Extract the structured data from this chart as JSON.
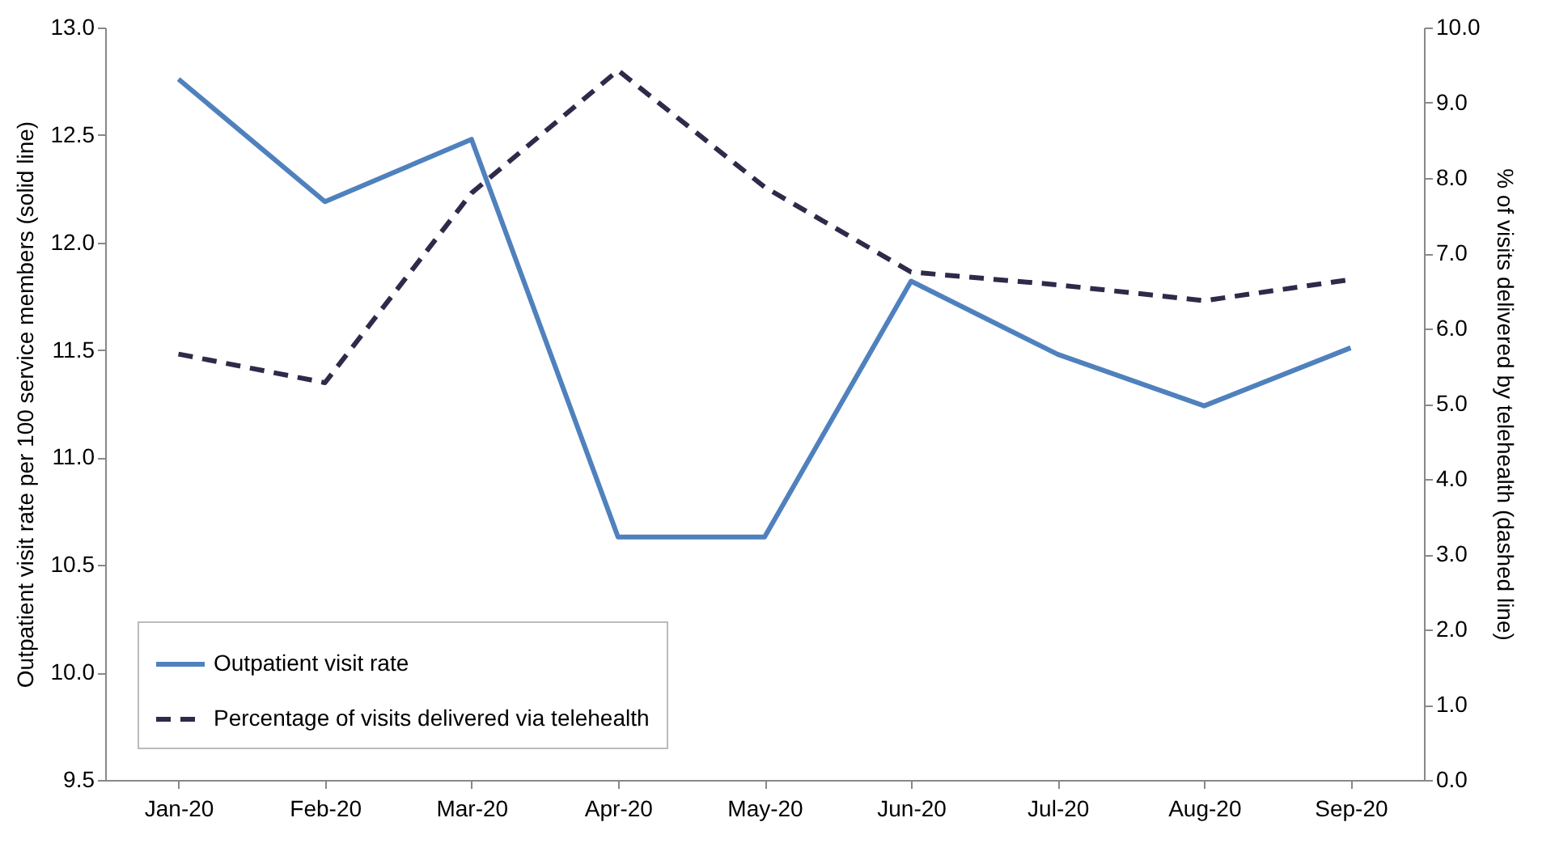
{
  "chart_data": {
    "type": "line",
    "categories": [
      "Jan-20",
      "Feb-20",
      "Mar-20",
      "Apr-20",
      "May-20",
      "Jun-20",
      "Jul-20",
      "Aug-20",
      "Sep-20"
    ],
    "ylabel": "Outpatient visit rate per 100 service members (solid line)",
    "y2label": "% of visits delivered by telehealth (dashed line)",
    "series": [
      {
        "name": "Outpatient visit rate",
        "color": "#4f81bd",
        "line_style": "solid",
        "values": [
          12.76,
          12.19,
          12.48,
          10.63,
          10.63,
          11.82,
          11.48,
          11.24,
          11.51
        ]
      },
      {
        "name": "Percentage of visits delivered via telehealth",
        "color": "#2e2a4a",
        "line_style": "dashed",
        "axis": "y2",
        "values": [
          5.66,
          5.28,
          7.8,
          9.43,
          7.88,
          6.75,
          6.58,
          6.37,
          6.65
        ]
      }
    ],
    "ylim": [
      9.5,
      13.0
    ],
    "yticks": [
      {
        "value": 9.5,
        "label": "9.5"
      },
      {
        "value": 10,
        "label": "10.0"
      },
      {
        "value": 10.5,
        "label": "10.5"
      },
      {
        "value": 11,
        "label": "11.0"
      },
      {
        "value": 11.5,
        "label": "11.5"
      },
      {
        "value": 12,
        "label": "12.0"
      },
      {
        "value": 12.5,
        "label": "12.5"
      },
      {
        "value": 13,
        "label": "13.0"
      }
    ],
    "y2lim": [
      0,
      10
    ],
    "y2ticks": [
      {
        "value": 0,
        "label": "0.0"
      },
      {
        "value": 1,
        "label": "1.0"
      },
      {
        "value": 2,
        "label": "2.0"
      },
      {
        "value": 3,
        "label": "3.0"
      },
      {
        "value": 4,
        "label": "4.0"
      },
      {
        "value": 5,
        "label": "5.0"
      },
      {
        "value": 6,
        "label": "6.0"
      },
      {
        "value": 7,
        "label": "7.0"
      },
      {
        "value": 8,
        "label": "8.0"
      },
      {
        "value": 9,
        "label": "9.0"
      },
      {
        "value": 10,
        "label": "10.0"
      }
    ],
    "grid": false,
    "legend": "bottom left",
    "marker": "none"
  }
}
